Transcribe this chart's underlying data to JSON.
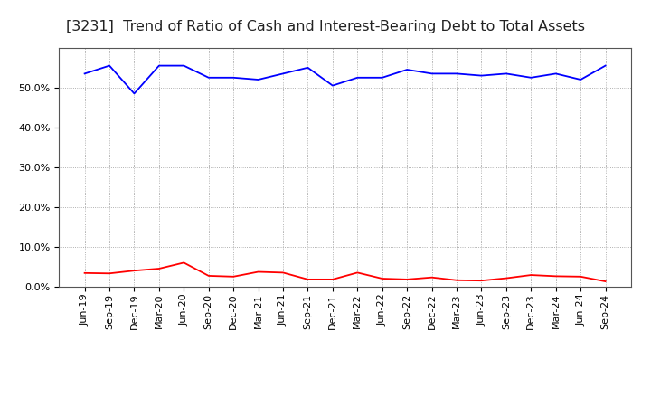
{
  "title": "[3231]  Trend of Ratio of Cash and Interest-Bearing Debt to Total Assets",
  "x_labels": [
    "Jun-19",
    "Sep-19",
    "Dec-19",
    "Mar-20",
    "Jun-20",
    "Sep-20",
    "Dec-20",
    "Mar-21",
    "Jun-21",
    "Sep-21",
    "Dec-21",
    "Mar-22",
    "Jun-22",
    "Sep-22",
    "Dec-22",
    "Mar-23",
    "Jun-23",
    "Sep-23",
    "Dec-23",
    "Mar-24",
    "Jun-24",
    "Sep-24"
  ],
  "cash": [
    3.4,
    3.3,
    4.0,
    4.5,
    6.0,
    2.7,
    2.5,
    3.7,
    3.5,
    1.8,
    1.8,
    3.5,
    2.0,
    1.8,
    2.3,
    1.6,
    1.5,
    2.1,
    2.9,
    2.6,
    2.5,
    1.3
  ],
  "interest_bearing_debt": [
    53.5,
    55.5,
    48.5,
    55.5,
    55.5,
    52.5,
    52.5,
    52.0,
    53.5,
    55.0,
    50.5,
    52.5,
    52.5,
    54.5,
    53.5,
    53.5,
    53.0,
    53.5,
    52.5,
    53.5,
    52.0,
    55.5
  ],
  "cash_color": "#ff0000",
  "debt_color": "#0000ff",
  "background_color": "#ffffff",
  "grid_color": "#999999",
  "ylim": [
    0,
    60
  ],
  "yticks": [
    0.0,
    10.0,
    20.0,
    30.0,
    40.0,
    50.0
  ],
  "title_fontsize": 11.5,
  "legend_fontsize": 9.5,
  "tick_fontsize": 8.0
}
